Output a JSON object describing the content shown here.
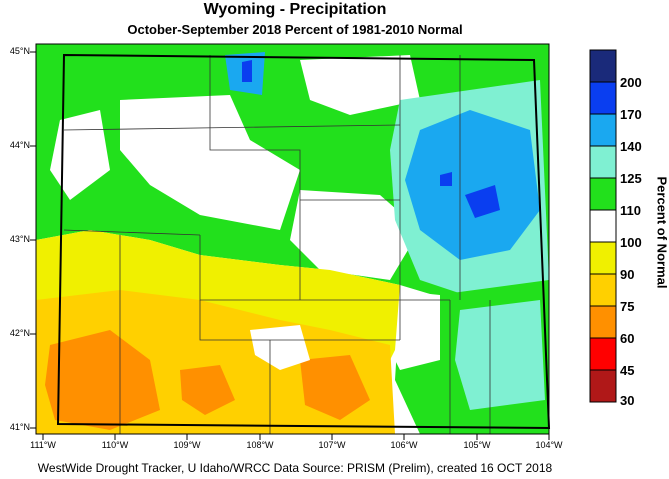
{
  "title": "Wyoming - Precipitation",
  "subtitle": "October-September 2018  Percent of 1981-2010 Normal",
  "footer": "WestWide Drought Tracker, U Idaho/WRCC Data Source: PRISM (Prelim), created 16 OCT 2018",
  "lat_labels": [
    "45°N",
    "44°N",
    "43°N",
    "42°N",
    "41°N"
  ],
  "lon_labels": [
    "111°W",
    "110°W",
    "109°W",
    "108°W",
    "107°W",
    "106°W",
    "105°W",
    "104°W"
  ],
  "colorbar": {
    "title": "Percent of Normal",
    "labels": [
      "200",
      "170",
      "140",
      "125",
      "110",
      "100",
      "90",
      "75",
      "60",
      "45",
      "30"
    ],
    "colors": [
      "#1a2a7a",
      "#0a3ef0",
      "#1aa8f0",
      "#7ff0d2",
      "#22e01c",
      "#ffffff",
      "#f0f000",
      "#ffd000",
      "#ff9000",
      "#ff0000",
      "#b01818"
    ]
  },
  "regions": [
    {
      "name": "north-center-green",
      "color": "#22e01c"
    },
    {
      "name": "northeast-cyan",
      "color": "#1aa8f0"
    },
    {
      "name": "east-teal",
      "color": "#7ff0d2"
    },
    {
      "name": "southwest-yellow",
      "color": "#f0f000"
    },
    {
      "name": "south-gold",
      "color": "#ffd000"
    },
    {
      "name": "southwest-orange",
      "color": "#ff9000"
    }
  ]
}
